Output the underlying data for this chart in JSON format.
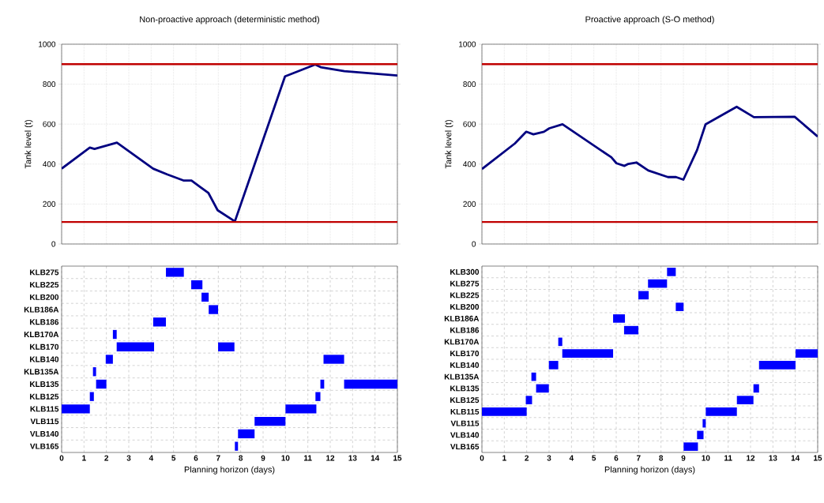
{
  "chart_data": [
    {
      "type": "line",
      "title": "Non-proactive approach (deterministic method)",
      "ylabel": "Tank level (t)",
      "xlim": [
        0,
        15
      ],
      "xticks": [
        0,
        1,
        2,
        3,
        4,
        5,
        6,
        7,
        8,
        9,
        10,
        11,
        12,
        13,
        14,
        15
      ],
      "ylim": [
        0,
        1000
      ],
      "yticks": [
        0,
        200,
        400,
        600,
        800,
        1000
      ],
      "tick_labels": "y",
      "grid": true,
      "ref_lines": [
        {
          "axis": "y",
          "value": 900,
          "color": "#c00000"
        },
        {
          "axis": "y",
          "value": 110,
          "color": "#c00000"
        }
      ],
      "series": [
        {
          "color": "#000080",
          "x": [
            0,
            1.26,
            1.47,
            2.47,
            4.09,
            4.73,
            5.44,
            5.8,
            6.56,
            6.97,
            7.74,
            9.98,
            11.33,
            11.57,
            12.63,
            15
          ],
          "values": [
            377,
            483,
            476,
            507,
            377,
            348,
            318,
            318,
            255,
            169,
            113,
            839,
            898,
            885,
            865,
            843
          ]
        }
      ]
    },
    {
      "type": "line",
      "title": "Proactive approach (S-O method)",
      "ylabel": "Tank level (t)",
      "xlim": [
        0,
        15
      ],
      "xticks": [
        0,
        1,
        2,
        3,
        4,
        5,
        6,
        7,
        8,
        9,
        10,
        11,
        12,
        13,
        14,
        15
      ],
      "ylim": [
        0,
        1000
      ],
      "yticks": [
        0,
        200,
        400,
        600,
        800,
        1000
      ],
      "tick_labels": "y",
      "grid": true,
      "ref_lines": [
        {
          "axis": "y",
          "value": 900,
          "color": "#c00000"
        },
        {
          "axis": "y",
          "value": 110,
          "color": "#c00000"
        }
      ],
      "series": [
        {
          "color": "#000080",
          "x": [
            0,
            1.47,
            1.98,
            2.3,
            2.77,
            3.01,
            3.6,
            5.78,
            6.01,
            6.37,
            6.54,
            6.9,
            7.43,
            8.31,
            8.67,
            9.0,
            9.61,
            9.99,
            11.38,
            12.15,
            13.97,
            15
          ],
          "values": [
            375,
            503,
            562,
            549,
            562,
            579,
            599,
            434,
            404,
            391,
            401,
            408,
            368,
            335,
            335,
            322,
            470,
            599,
            687,
            635,
            637,
            538
          ]
        }
      ]
    },
    {
      "type": "bar",
      "orientation": "horizontal",
      "xlabel": "Planning horizon (days)",
      "xlim": [
        0,
        15
      ],
      "xticks": [
        0,
        1,
        2,
        3,
        4,
        5,
        6,
        7,
        8,
        9,
        10,
        11,
        12,
        13,
        14,
        15
      ],
      "grid": true,
      "categories": [
        "KLB275",
        "KLB225",
        "KLB200",
        "KLB186A",
        "KLB186",
        "KLB170A",
        "KLB170",
        "KLB140",
        "KLB135A",
        "KLB135",
        "KLB125",
        "KLB115",
        "VLB115",
        "VLB140",
        "VLB165"
      ],
      "series": [
        {
          "color": "#0000ff",
          "base": [
            4.66,
            5.79,
            6.25,
            6.57,
            4.09,
            2.29,
            2.46,
            1.97,
            1.4,
            1.54,
            1.26,
            0,
            8.62,
            7.88,
            7.74
          ],
          "values": [
            0.8,
            0.5,
            0.32,
            0.42,
            0.57,
            0.17,
            1.67,
            0.32,
            0.14,
            0.46,
            0.18,
            1.26,
            1.38,
            0.74,
            0.14
          ]
        },
        {
          "color": "#0000ff",
          "base": [
            null,
            null,
            null,
            null,
            null,
            null,
            6.99,
            11.7,
            null,
            11.56,
            11.34,
            10.0,
            null,
            null,
            null
          ],
          "values": [
            null,
            null,
            null,
            null,
            null,
            null,
            0.73,
            0.92,
            null,
            0.17,
            0.22,
            1.38,
            null,
            null,
            null
          ]
        },
        {
          "color": "#0000ff",
          "base": [
            null,
            null,
            null,
            null,
            null,
            null,
            null,
            null,
            null,
            12.62,
            null,
            null,
            null,
            null,
            null
          ],
          "values": [
            null,
            null,
            null,
            null,
            null,
            null,
            null,
            null,
            null,
            2.38,
            null,
            null,
            null,
            null,
            null
          ]
        }
      ]
    },
    {
      "type": "bar",
      "orientation": "horizontal",
      "xlabel": "Planning horizon (days)",
      "xlim": [
        0,
        15
      ],
      "xticks": [
        0,
        1,
        2,
        3,
        4,
        5,
        6,
        7,
        8,
        9,
        10,
        11,
        12,
        13,
        14,
        15
      ],
      "grid": true,
      "categories": [
        "KLB300",
        "KLB275",
        "KLB225",
        "KLB200",
        "KLB186A",
        "KLB186",
        "KLB170A",
        "KLB170",
        "KLB140",
        "KLB135A",
        "KLB135",
        "KLB125",
        "KLB115",
        "VLB115",
        "VLB140",
        "VLB165"
      ],
      "series": [
        {
          "color": "#0000ff",
          "base": [
            8.27,
            7.42,
            6.99,
            8.66,
            5.86,
            6.35,
            3.41,
            3.59,
            2.99,
            2.21,
            2.42,
            1.96,
            0,
            9.86,
            9.61,
            9.01
          ],
          "values": [
            0.39,
            0.85,
            0.46,
            0.35,
            0.53,
            0.64,
            0.18,
            2.27,
            0.42,
            0.21,
            0.57,
            0.28,
            2.0,
            0.14,
            0.29,
            0.64
          ]
        },
        {
          "color": "#0000ff",
          "base": [
            null,
            null,
            null,
            null,
            null,
            null,
            null,
            14.01,
            12.38,
            null,
            12.13,
            11.39,
            10.0,
            null,
            null,
            null
          ],
          "values": [
            null,
            null,
            null,
            null,
            null,
            null,
            null,
            0.99,
            1.63,
            null,
            0.25,
            0.74,
            1.39,
            null,
            null,
            null
          ]
        }
      ]
    }
  ]
}
